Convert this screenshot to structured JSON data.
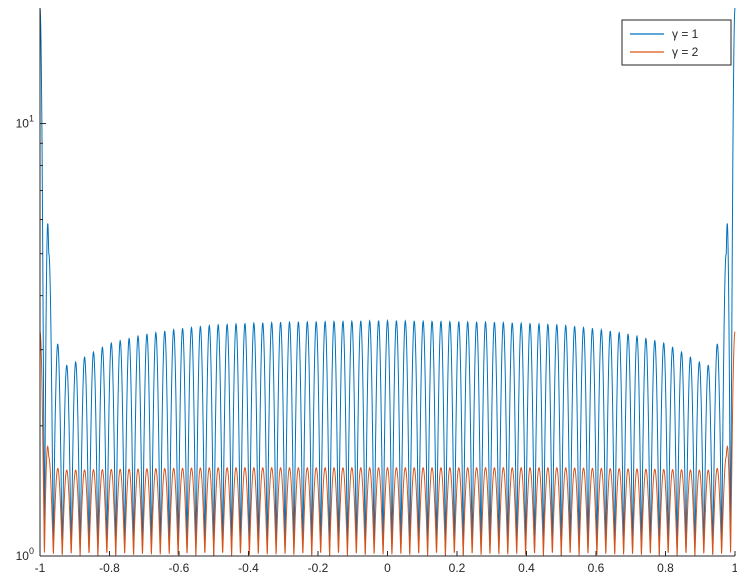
{
  "chart_data": {
    "type": "line",
    "title": "",
    "xlabel": "",
    "ylabel": "",
    "xlim": [
      -1,
      1
    ],
    "ylim": [
      1,
      18.5
    ],
    "yscale": "log",
    "grid": false,
    "legend_position": "top-right",
    "x_ticks": [
      -1,
      -0.8,
      -0.6,
      -0.4,
      -0.2,
      0,
      0.2,
      0.4,
      0.6,
      0.8,
      1
    ],
    "x_tick_labels": [
      "-1",
      "-0.8",
      "-0.6",
      "-0.4",
      "-0.2",
      "0",
      "0.2",
      "0.4",
      "0.6",
      "0.8",
      "1"
    ],
    "y_ticks": [
      1,
      10
    ],
    "y_tick_labels": [
      {
        "base": "10",
        "exp": "0"
      },
      {
        "base": "10",
        "exp": "1"
      }
    ],
    "series": [
      {
        "name": "γ = 1",
        "color": "#0072BD",
        "oscillation_lobes": 78,
        "minimum_value": 1.0,
        "envelope": {
          "x": [
            -1.0,
            -0.994,
            -0.985,
            -0.975,
            -0.965,
            -0.955,
            -0.93,
            -0.9,
            -0.85,
            -0.8,
            -0.7,
            -0.6,
            -0.5,
            -0.4,
            -0.3,
            -0.2,
            -0.1,
            0.0,
            0.1,
            0.2,
            0.3,
            0.4,
            0.5,
            0.6,
            0.7,
            0.8,
            0.85,
            0.9,
            0.93,
            0.955,
            0.965,
            0.975,
            0.985,
            0.994,
            1.0
          ],
          "y": [
            18.5,
            18.5,
            12.0,
            5.0,
            4.9,
            3.2,
            2.75,
            2.8,
            2.95,
            3.1,
            3.25,
            3.35,
            3.42,
            3.45,
            3.47,
            3.48,
            3.49,
            3.5,
            3.49,
            3.48,
            3.47,
            3.45,
            3.42,
            3.35,
            3.25,
            3.1,
            2.95,
            2.8,
            2.75,
            3.2,
            4.9,
            5.0,
            12.0,
            18.5,
            18.5
          ]
        }
      },
      {
        "name": "γ = 2",
        "color": "#D95319",
        "oscillation_lobes": 78,
        "minimum_value": 1.0,
        "envelope": {
          "x": [
            -1.0,
            -0.994,
            -0.985,
            -0.975,
            -0.965,
            -0.94,
            -0.9,
            -0.5,
            0.0,
            0.5,
            0.9,
            0.94,
            0.965,
            0.975,
            0.985,
            0.994,
            1.0
          ],
          "y": [
            3.3,
            3.3,
            2.4,
            1.7,
            1.62,
            1.58,
            1.58,
            1.6,
            1.6,
            1.6,
            1.58,
            1.58,
            1.62,
            1.7,
            2.4,
            3.3,
            3.3
          ]
        }
      }
    ]
  }
}
